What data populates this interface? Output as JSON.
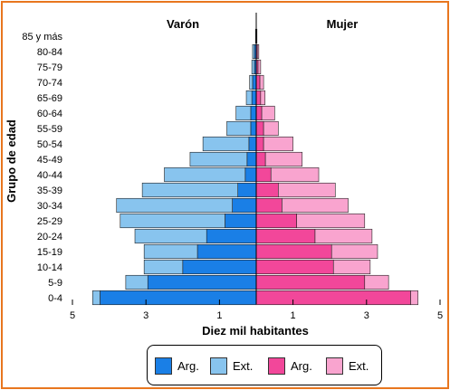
{
  "chart_data": {
    "type": "bar",
    "title": "",
    "xlabel": "Diez mil habitantes",
    "ylabel": "Grupo de edad",
    "xlim": [
      -5,
      5
    ],
    "x_tick_labels": [
      "5",
      "3",
      "1",
      "1",
      "3",
      "5"
    ],
    "x_tick_values": [
      -5,
      -3,
      -1,
      1,
      3,
      5
    ],
    "side_labels": {
      "left": "Varón",
      "right": "Mujer"
    },
    "categories": [
      "85 y más",
      "80-84",
      "75-79",
      "70-74",
      "65-69",
      "60-64",
      "55-59",
      "50-54",
      "45-49",
      "40-44",
      "35-39",
      "30-34",
      "25-29",
      "20-24",
      "15-19",
      "10-14",
      "5-9",
      "0-4"
    ],
    "series": [
      {
        "name": "Arg.",
        "side": "Varón",
        "color": "#1a7fe6",
        "values": [
          0,
          0.05,
          0.05,
          0.1,
          0.12,
          0.15,
          0.15,
          0.2,
          0.25,
          0.3,
          0.5,
          0.65,
          0.85,
          1.35,
          1.6,
          2.0,
          2.95,
          4.25
        ]
      },
      {
        "name": "Ext.",
        "side": "Varón",
        "color": "#88c4ee",
        "values": [
          0.02,
          0.05,
          0.07,
          0.08,
          0.15,
          0.4,
          0.65,
          1.25,
          1.55,
          2.2,
          2.6,
          3.15,
          2.85,
          1.95,
          1.45,
          1.05,
          0.6,
          0.2
        ]
      },
      {
        "name": "Arg.",
        "side": "Mujer",
        "color": "#f2479a",
        "values": [
          0,
          0.03,
          0.05,
          0.1,
          0.12,
          0.15,
          0.2,
          0.2,
          0.25,
          0.4,
          0.6,
          0.7,
          1.1,
          1.6,
          2.05,
          2.1,
          2.95,
          4.2
        ]
      },
      {
        "name": "Ext.",
        "side": "Mujer",
        "color": "#f9a4cf",
        "values": [
          0.02,
          0.04,
          0.07,
          0.1,
          0.12,
          0.35,
          0.4,
          0.8,
          1.0,
          1.3,
          1.55,
          1.8,
          1.85,
          1.55,
          1.25,
          1.0,
          0.65,
          0.2
        ]
      }
    ],
    "legend": {
      "position": "bottom",
      "items": [
        {
          "label": "Arg.",
          "color": "#1a7fe6"
        },
        {
          "label": "Ext.",
          "color": "#88c4ee"
        },
        {
          "label": "Arg.",
          "color": "#f2479a"
        },
        {
          "label": "Ext.",
          "color": "#f9a4cf"
        }
      ]
    }
  }
}
